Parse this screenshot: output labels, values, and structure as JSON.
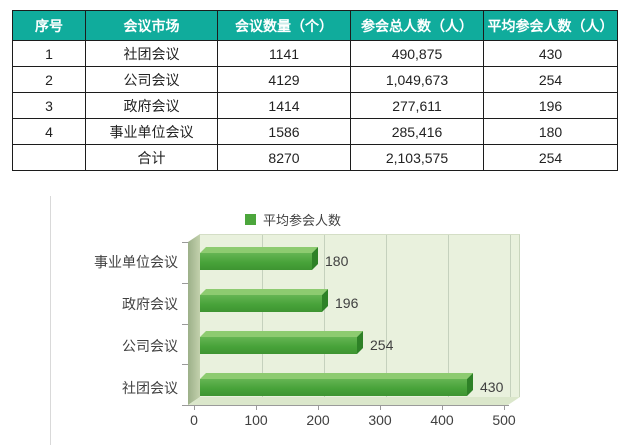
{
  "colors": {
    "header_bg": "#10ac9c",
    "header_text": "#ffffff",
    "bar_front": "#48a33a",
    "bar_top": "#8dcb70",
    "bar_cap": "#2e8127",
    "plot_bg": "#e9f1dd",
    "wall": "#a9bd97",
    "floor": "#dbe7cb",
    "gridline": "#c5d1bd"
  },
  "table": {
    "headers": [
      "序号",
      "会议市场",
      "会议数量（个）",
      "参会总人数（人）",
      "平均参会人数（人）"
    ],
    "rows": [
      [
        "1",
        "社团会议",
        "1141",
        "490,875",
        "430"
      ],
      [
        "2",
        "公司会议",
        "4129",
        "1,049,673",
        "254"
      ],
      [
        "3",
        "政府会议",
        "1414",
        "277,611",
        "196"
      ],
      [
        "4",
        "事业单位会议",
        "1586",
        "285,416",
        "180"
      ],
      [
        "",
        "合计",
        "8270",
        "2,103,575",
        "254"
      ]
    ]
  },
  "chart_data": {
    "type": "bar",
    "orientation": "horizontal",
    "style": "3d",
    "legend": [
      "平均参会人数"
    ],
    "legend_position": "top",
    "categories": [
      "事业单位会议",
      "政府会议",
      "公司会议",
      "社团会议"
    ],
    "values": [
      180,
      196,
      254,
      430
    ],
    "xlim": [
      0,
      500
    ],
    "xticks": [
      0,
      100,
      200,
      300,
      400,
      500
    ],
    "grid": true,
    "value_labels_shown": true
  }
}
